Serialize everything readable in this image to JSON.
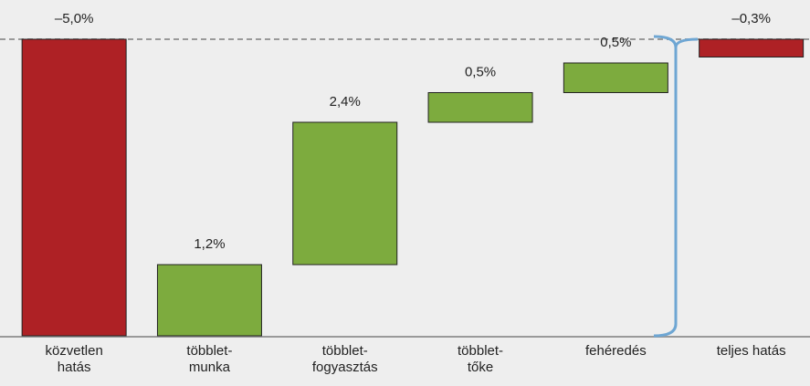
{
  "chart_data": {
    "type": "waterfall",
    "categories": [
      "közvetlen\nhatás",
      "többlet-\nmunka",
      "többlet-\nfogyasztás",
      "többlet-\ntőke",
      "fehéredés",
      "teljes hatás"
    ],
    "values": [
      -5.0,
      1.2,
      2.4,
      0.5,
      0.5,
      -0.3
    ],
    "value_labels": [
      "–5,0%",
      "1,2%",
      "2,4%",
      "0,5%",
      "0,5%",
      "–0,3%"
    ],
    "totals": [
      true,
      false,
      false,
      false,
      false,
      true
    ],
    "colors": [
      "#ae2125",
      "#7dab3e",
      "#7dab3e",
      "#7dab3e",
      "#7dab3e",
      "#ae2125"
    ],
    "ylim": [
      -5,
      0
    ]
  }
}
